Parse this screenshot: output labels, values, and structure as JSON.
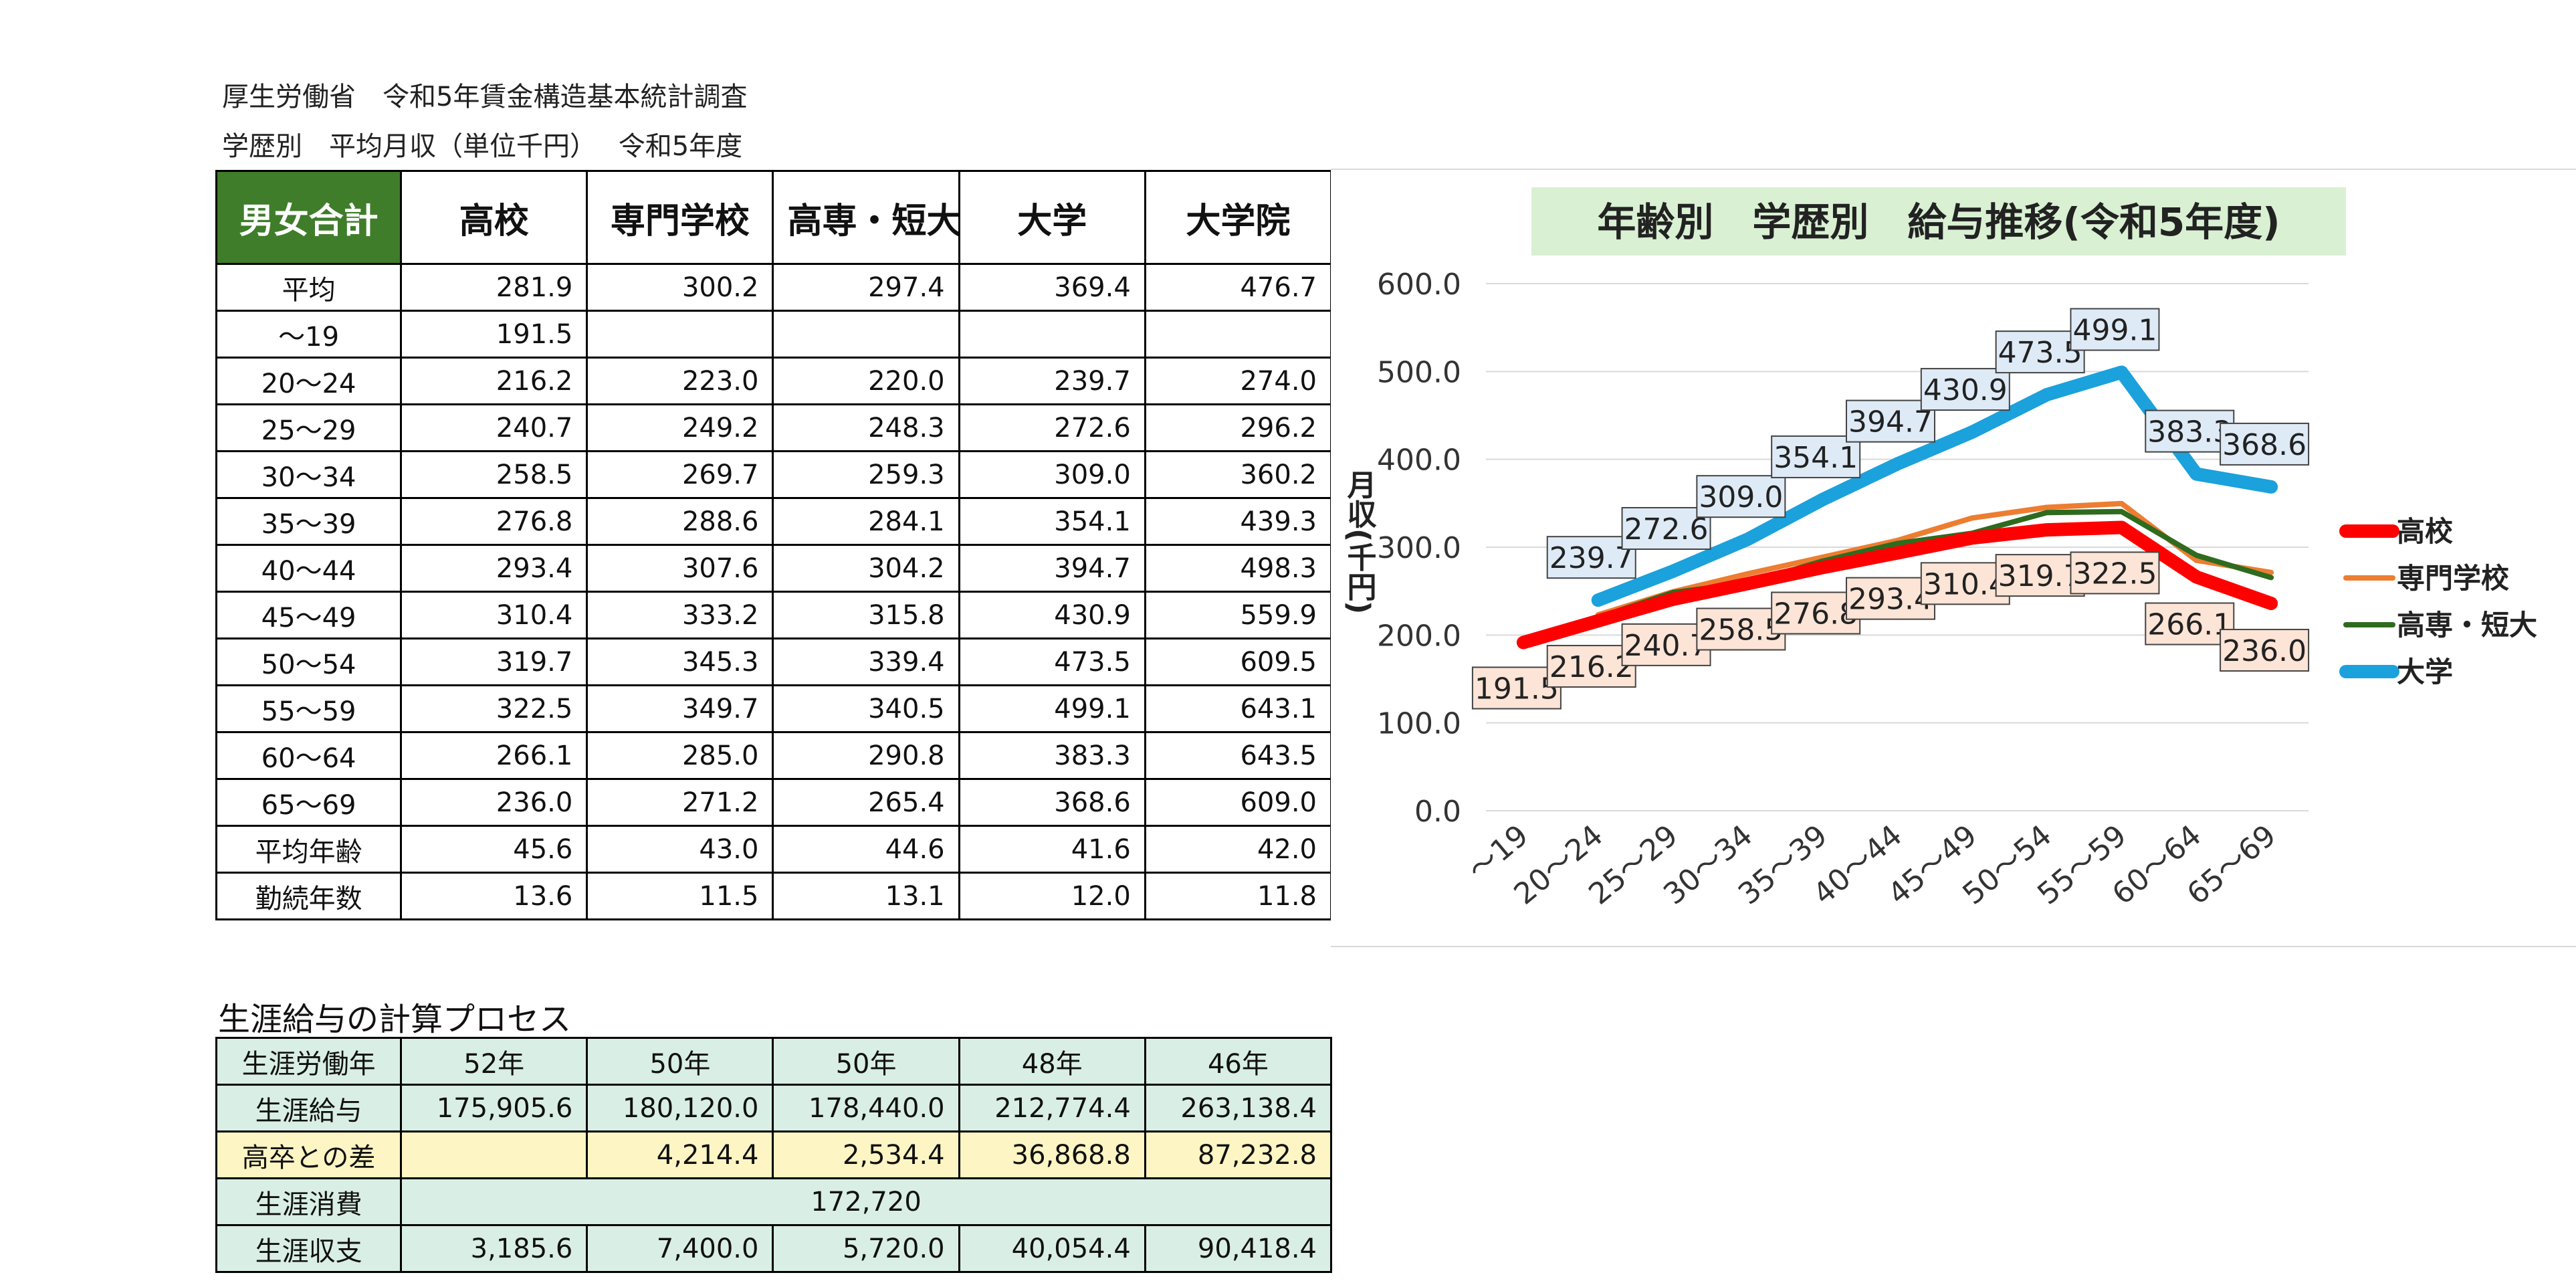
{
  "header": {
    "line1": "厚生労働省　令和5年賃金構造基本統計調査",
    "line2": "学歴別　平均月収（単位千円）　 令和5年度"
  },
  "main_table": {
    "corner": "男女合計",
    "columns": [
      "高校",
      "専門学校",
      "高専・短大",
      "大学",
      "大学院"
    ],
    "rows": [
      {
        "label": "平均",
        "values": [
          "281.9",
          "300.2",
          "297.4",
          "369.4",
          "476.7"
        ]
      },
      {
        "label": "～19",
        "values": [
          "191.5",
          "",
          "",
          "",
          ""
        ]
      },
      {
        "label": "20～24",
        "values": [
          "216.2",
          "223.0",
          "220.0",
          "239.7",
          "274.0"
        ]
      },
      {
        "label": "25～29",
        "values": [
          "240.7",
          "249.2",
          "248.3",
          "272.6",
          "296.2"
        ]
      },
      {
        "label": "30～34",
        "values": [
          "258.5",
          "269.7",
          "259.3",
          "309.0",
          "360.2"
        ]
      },
      {
        "label": "35～39",
        "values": [
          "276.8",
          "288.6",
          "284.1",
          "354.1",
          "439.3"
        ]
      },
      {
        "label": "40～44",
        "values": [
          "293.4",
          "307.6",
          "304.2",
          "394.7",
          "498.3"
        ]
      },
      {
        "label": "45～49",
        "values": [
          "310.4",
          "333.2",
          "315.8",
          "430.9",
          "559.9"
        ]
      },
      {
        "label": "50～54",
        "values": [
          "319.7",
          "345.3",
          "339.4",
          "473.5",
          "609.5"
        ]
      },
      {
        "label": "55～59",
        "values": [
          "322.5",
          "349.7",
          "340.5",
          "499.1",
          "643.1"
        ]
      },
      {
        "label": "60～64",
        "values": [
          "266.1",
          "285.0",
          "290.8",
          "383.3",
          "643.5"
        ]
      },
      {
        "label": "65～69",
        "values": [
          "236.0",
          "271.2",
          "265.4",
          "368.6",
          "609.0"
        ]
      },
      {
        "label": "平均年齢",
        "values": [
          "45.6",
          "43.0",
          "44.6",
          "41.6",
          "42.0"
        ]
      },
      {
        "label": "勤続年数",
        "values": [
          "13.6",
          "11.5",
          "13.1",
          "12.0",
          "11.8"
        ]
      }
    ]
  },
  "lifetime": {
    "title": "生涯給与の計算プロセス",
    "years": {
      "label": "生涯労働年",
      "values": [
        "52年",
        "50年",
        "50年",
        "48年",
        "46年"
      ]
    },
    "salary": {
      "label": "生涯給与",
      "values": [
        "175,905.6",
        "180,120.0",
        "178,440.0",
        "212,774.4",
        "263,138.4"
      ]
    },
    "diff": {
      "label": "高卒との差",
      "values": [
        "",
        "4,214.4",
        "2,534.4",
        "36,868.8",
        "87,232.8"
      ]
    },
    "consumption": {
      "label": "生涯消費",
      "value": "172,720"
    },
    "balance": {
      "label": "生涯収支",
      "values": [
        "3,185.6",
        "7,400.0",
        "5,720.0",
        "40,054.4",
        "90,418.4"
      ]
    }
  },
  "chart_data": {
    "type": "line",
    "title": "年齢別　学歴別　給与推移(令和5年度)",
    "ylabel": "月収(千円)",
    "xlabel": "",
    "ylim": [
      0,
      600
    ],
    "yticks": [
      "0.0",
      "100.0",
      "200.0",
      "300.0",
      "400.0",
      "500.0",
      "600.0"
    ],
    "categories": [
      "～19",
      "20～24",
      "25～29",
      "30～34",
      "35～39",
      "40～44",
      "45～49",
      "50～54",
      "55～59",
      "60～64",
      "65～69"
    ],
    "grid": true,
    "legend_position": "right",
    "series": [
      {
        "name": "高校",
        "color": "#ff0000",
        "values": [
          191.5,
          216.2,
          240.7,
          258.5,
          276.8,
          293.4,
          310.4,
          319.7,
          322.5,
          266.1,
          236.0
        ]
      },
      {
        "name": "専門学校",
        "color": "#ed7d31",
        "values": [
          null,
          223.0,
          249.2,
          269.7,
          288.6,
          307.6,
          333.2,
          345.3,
          349.7,
          285.0,
          271.2
        ]
      },
      {
        "name": "高専・短大",
        "color": "#2e6b1f",
        "values": [
          null,
          220.0,
          248.3,
          259.3,
          284.1,
          304.2,
          315.8,
          339.4,
          340.5,
          290.8,
          265.4
        ]
      },
      {
        "name": "大学",
        "color": "#1ba1dc",
        "values": [
          null,
          239.7,
          272.6,
          309.0,
          354.1,
          394.7,
          430.9,
          473.5,
          499.1,
          383.3,
          368.6
        ]
      }
    ],
    "data_labels": {
      "高校": [
        "191.5",
        "216.2",
        "240.7",
        "258.5",
        "276.8",
        "293.4",
        "310.4",
        "319.7",
        "322.5",
        "266.1",
        "236.0"
      ],
      "大学": [
        "239.7",
        "272.6",
        "309.0",
        "354.1",
        "394.7",
        "430.9",
        "473.5",
        "499.1",
        "383.3",
        "368.6"
      ]
    }
  }
}
